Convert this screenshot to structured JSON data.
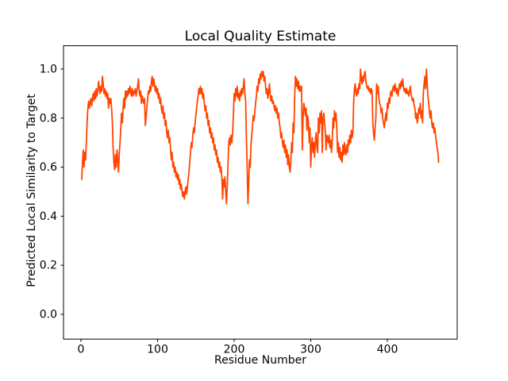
{
  "figure": {
    "background": "#ffffff",
    "text_color": "#000000"
  },
  "chart_data": {
    "type": "line",
    "title": "Local Quality Estimate",
    "xlabel": "Residue Number",
    "ylabel": "Predicted Local Similarity to Target",
    "line_color": "#FF4500",
    "line_width": 1.8,
    "grid": false,
    "legend": "none",
    "xlim": [
      -22.8,
      491.2
    ],
    "ylim": [
      -0.101,
      1.095
    ],
    "xticks": [
      0,
      100,
      200,
      300,
      400
    ],
    "xtick_labels": [
      "0",
      "100",
      "200",
      "300",
      "400"
    ],
    "yticks": [
      0.0,
      0.2,
      0.4,
      0.6,
      0.8,
      1.0
    ],
    "ytick_labels": [
      "0.0",
      "0.2",
      "0.4",
      "0.6",
      "0.8",
      "1.0"
    ],
    "x_start": 1,
    "x_step": 1,
    "values": [
      0.55,
      0.62,
      0.67,
      0.6,
      0.66,
      0.63,
      0.7,
      0.78,
      0.84,
      0.87,
      0.84,
      0.86,
      0.88,
      0.85,
      0.88,
      0.9,
      0.87,
      0.91,
      0.88,
      0.92,
      0.89,
      0.91,
      0.95,
      0.92,
      0.9,
      0.93,
      0.91,
      0.97,
      0.94,
      0.9,
      0.92,
      0.89,
      0.91,
      0.88,
      0.9,
      0.84,
      0.88,
      0.86,
      0.88,
      0.84,
      0.78,
      0.68,
      0.62,
      0.59,
      0.65,
      0.6,
      0.67,
      0.63,
      0.58,
      0.66,
      0.7,
      0.76,
      0.82,
      0.78,
      0.84,
      0.88,
      0.84,
      0.91,
      0.88,
      0.91,
      0.89,
      0.92,
      0.9,
      0.93,
      0.91,
      0.89,
      0.92,
      0.89,
      0.91,
      0.9,
      0.92,
      0.89,
      0.91,
      0.93,
      0.96,
      0.91,
      0.89,
      0.91,
      0.86,
      0.89,
      0.87,
      0.86,
      0.88,
      0.77,
      0.8,
      0.84,
      0.88,
      0.91,
      0.9,
      0.93,
      0.91,
      0.95,
      0.97,
      0.93,
      0.96,
      0.94,
      0.91,
      0.93,
      0.9,
      0.92,
      0.88,
      0.9,
      0.86,
      0.88,
      0.84,
      0.82,
      0.85,
      0.8,
      0.82,
      0.77,
      0.79,
      0.74,
      0.72,
      0.75,
      0.7,
      0.72,
      0.67,
      0.63,
      0.66,
      0.6,
      0.62,
      0.58,
      0.6,
      0.56,
      0.58,
      0.55,
      0.57,
      0.53,
      0.55,
      0.51,
      0.53,
      0.5,
      0.48,
      0.5,
      0.47,
      0.5,
      0.52,
      0.49,
      0.52,
      0.55,
      0.58,
      0.62,
      0.66,
      0.7,
      0.68,
      0.73,
      0.76,
      0.74,
      0.78,
      0.81,
      0.84,
      0.87,
      0.89,
      0.92,
      0.9,
      0.93,
      0.9,
      0.92,
      0.88,
      0.9,
      0.86,
      0.83,
      0.85,
      0.8,
      0.82,
      0.77,
      0.79,
      0.74,
      0.76,
      0.72,
      0.74,
      0.7,
      0.72,
      0.67,
      0.69,
      0.65,
      0.67,
      0.62,
      0.64,
      0.6,
      0.62,
      0.58,
      0.6,
      0.55,
      0.47,
      0.55,
      0.52,
      0.56,
      0.5,
      0.45,
      0.52,
      0.62,
      0.7,
      0.72,
      0.69,
      0.73,
      0.7,
      0.74,
      0.81,
      0.9,
      0.87,
      0.92,
      0.89,
      0.93,
      0.88,
      0.9,
      0.87,
      0.91,
      0.89,
      0.92,
      0.9,
      0.93,
      0.96,
      0.9,
      0.87,
      0.72,
      0.6,
      0.45,
      0.53,
      0.63,
      0.6,
      0.69,
      0.73,
      0.77,
      0.81,
      0.79,
      0.83,
      0.86,
      0.89,
      0.93,
      0.91,
      0.96,
      0.94,
      0.98,
      0.96,
      0.99,
      0.97,
      0.99,
      0.95,
      0.97,
      0.93,
      0.9,
      0.92,
      0.88,
      0.9,
      0.94,
      0.9,
      0.87,
      0.89,
      0.86,
      0.87,
      0.85,
      0.83,
      0.85,
      0.82,
      0.84,
      0.8,
      0.82,
      0.78,
      0.76,
      0.72,
      0.74,
      0.7,
      0.68,
      0.71,
      0.66,
      0.69,
      0.64,
      0.67,
      0.61,
      0.65,
      0.6,
      0.58,
      0.62,
      0.7,
      0.66,
      0.78,
      0.74,
      0.88,
      0.97,
      0.93,
      0.96,
      0.92,
      0.95,
      0.91,
      0.93,
      0.91,
      0.93,
      0.67,
      0.8,
      0.86,
      0.84,
      0.81,
      0.84,
      0.75,
      0.81,
      0.78,
      0.7,
      0.76,
      0.6,
      0.68,
      0.72,
      0.66,
      0.7,
      0.64,
      0.71,
      0.74,
      0.68,
      0.66,
      0.8,
      0.74,
      0.82,
      0.78,
      0.83,
      0.66,
      0.8,
      0.82,
      0.78,
      0.75,
      0.67,
      0.73,
      0.72,
      0.7,
      0.73,
      0.68,
      0.71,
      0.66,
      0.7,
      0.8,
      0.76,
      0.83,
      0.79,
      0.82,
      0.76,
      0.66,
      0.7,
      0.64,
      0.68,
      0.63,
      0.66,
      0.62,
      0.69,
      0.65,
      0.7,
      0.66,
      0.65,
      0.69,
      0.66,
      0.71,
      0.69,
      0.73,
      0.7,
      0.75,
      0.72,
      0.74,
      0.86,
      0.92,
      0.94,
      0.9,
      0.89,
      0.92,
      0.9,
      0.94,
      0.92,
      1.0,
      0.96,
      0.94,
      0.97,
      0.95,
      0.98,
      0.99,
      0.95,
      0.93,
      0.92,
      0.93,
      0.91,
      0.92,
      0.9,
      0.92,
      0.91,
      0.78,
      0.74,
      0.71,
      0.76,
      0.8,
      0.94,
      0.9,
      0.93,
      0.88,
      0.86,
      0.85,
      0.82,
      0.84,
      0.8,
      0.78,
      0.76,
      0.79,
      0.82,
      0.79,
      0.86,
      0.84,
      0.88,
      0.86,
      0.9,
      0.91,
      0.89,
      0.92,
      0.93,
      0.91,
      0.94,
      0.92,
      0.9,
      0.92,
      0.89,
      0.92,
      0.94,
      0.92,
      0.95,
      0.93,
      0.96,
      0.93,
      0.91,
      0.92,
      0.9,
      0.92,
      0.9,
      0.91,
      0.89,
      0.91,
      0.93,
      0.9,
      0.88,
      0.87,
      0.88,
      0.85,
      0.84,
      0.8,
      0.82,
      0.78,
      0.8,
      0.84,
      0.82,
      0.86,
      0.8,
      0.83,
      0.78,
      0.9,
      0.94,
      0.97,
      0.92,
      1.0,
      0.94,
      0.89,
      0.86,
      0.82,
      0.8,
      0.83,
      0.78,
      0.76,
      0.78,
      0.74,
      0.76,
      0.73,
      0.7,
      0.68,
      0.66,
      0.62
    ]
  }
}
